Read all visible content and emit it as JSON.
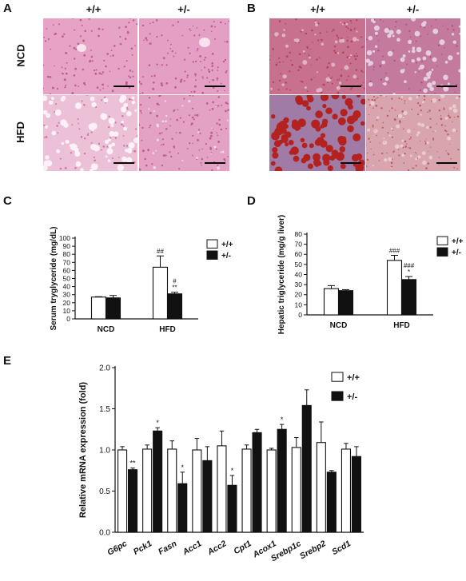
{
  "panels": {
    "A": {
      "letter": "A",
      "col_labels": [
        "+/+",
        "+/-"
      ],
      "row_labels": [
        "NCD",
        "HFD"
      ]
    },
    "B": {
      "letter": "B",
      "col_labels": [
        "+/+",
        "+/-"
      ]
    },
    "C": {
      "letter": "C"
    },
    "D": {
      "letter": "D"
    },
    "E": {
      "letter": "E"
    }
  },
  "colors": {
    "he_base": "#e6a3c6",
    "he_dark": "#b2497f",
    "he_light": "#f7e2ee",
    "oro_base": "#c7718f",
    "oro_red": "#b3221f",
    "oro_light": "#e9d0dc",
    "bar_open": "#ffffff",
    "bar_filled": "#111111"
  },
  "chart_data": [
    {
      "type": "bar",
      "panel": "C",
      "categories": [
        "NCD",
        "HFD"
      ],
      "series": [
        {
          "name": "+/+",
          "values": [
            27,
            64
          ],
          "errors": [
            0.5,
            14
          ]
        },
        {
          "name": "+/-",
          "values": [
            26,
            31
          ],
          "errors": [
            3,
            2
          ]
        }
      ],
      "annotations": [
        {
          "category": "HFD",
          "series": "+/+",
          "text": "##"
        },
        {
          "category": "HFD",
          "series": "+/-",
          "text": "#"
        },
        {
          "category": "HFD",
          "series": "+/-",
          "text": "**"
        }
      ],
      "ylabel": "Serum tryglyceride (mg/dL)",
      "ylim": [
        0,
        100
      ],
      "yticks": [
        0,
        10,
        20,
        30,
        40,
        50,
        60,
        70,
        80,
        90,
        100
      ],
      "legend": "top-right"
    },
    {
      "type": "bar",
      "panel": "D",
      "categories": [
        "NCD",
        "HFD"
      ],
      "series": [
        {
          "name": "+/+",
          "values": [
            26,
            54
          ],
          "errors": [
            3,
            5
          ]
        },
        {
          "name": "+/-",
          "values": [
            24,
            35
          ],
          "errors": [
            1,
            3
          ]
        }
      ],
      "annotations": [
        {
          "category": "HFD",
          "series": "+/+",
          "text": "###"
        },
        {
          "category": "HFD",
          "series": "+/-",
          "text": "###"
        },
        {
          "category": "HFD",
          "series": "+/-",
          "text": "*"
        }
      ],
      "ylabel": "Hepatic triglyceride (mg/g liver)",
      "ylim": [
        0,
        80
      ],
      "yticks": [
        0,
        10,
        20,
        30,
        40,
        50,
        60,
        70,
        80
      ],
      "legend": "top-right"
    },
    {
      "type": "bar",
      "panel": "E",
      "categories": [
        "G6pc",
        "Pck1",
        "Fasn",
        "Acc1",
        "Acc2",
        "Cpt1",
        "Acox1",
        "Srebp1c",
        "Srebp2",
        "Scd1"
      ],
      "series": [
        {
          "name": "+/+",
          "values": [
            1.0,
            1.01,
            1.01,
            1.0,
            1.05,
            1.01,
            1.0,
            1.03,
            1.09,
            1.01
          ],
          "errors": [
            0.04,
            0.05,
            0.1,
            0.14,
            0.18,
            0.05,
            0.02,
            0.12,
            0.25,
            0.07
          ]
        },
        {
          "name": "+/-",
          "values": [
            0.76,
            1.23,
            0.59,
            0.87,
            0.57,
            1.21,
            1.25,
            1.54,
            0.73,
            0.92
          ],
          "errors": [
            0.02,
            0.04,
            0.14,
            0.17,
            0.12,
            0.04,
            0.06,
            0.19,
            0.02,
            0.12
          ]
        }
      ],
      "annotations": [
        {
          "category": "G6pc",
          "series": "+/-",
          "text": "**"
        },
        {
          "category": "Pck1",
          "series": "+/-",
          "text": "*"
        },
        {
          "category": "Fasn",
          "series": "+/-",
          "text": "*"
        },
        {
          "category": "Acc2",
          "series": "+/-",
          "text": "*"
        },
        {
          "category": "Acox1",
          "series": "+/-",
          "text": "*"
        }
      ],
      "ylabel": "Relative mRNA expression (fold)",
      "ylim": [
        0,
        2.0
      ],
      "yticks": [
        "0.0",
        "0.5",
        "1.0",
        "1.5",
        "2.0"
      ],
      "legend": "top-right"
    }
  ]
}
